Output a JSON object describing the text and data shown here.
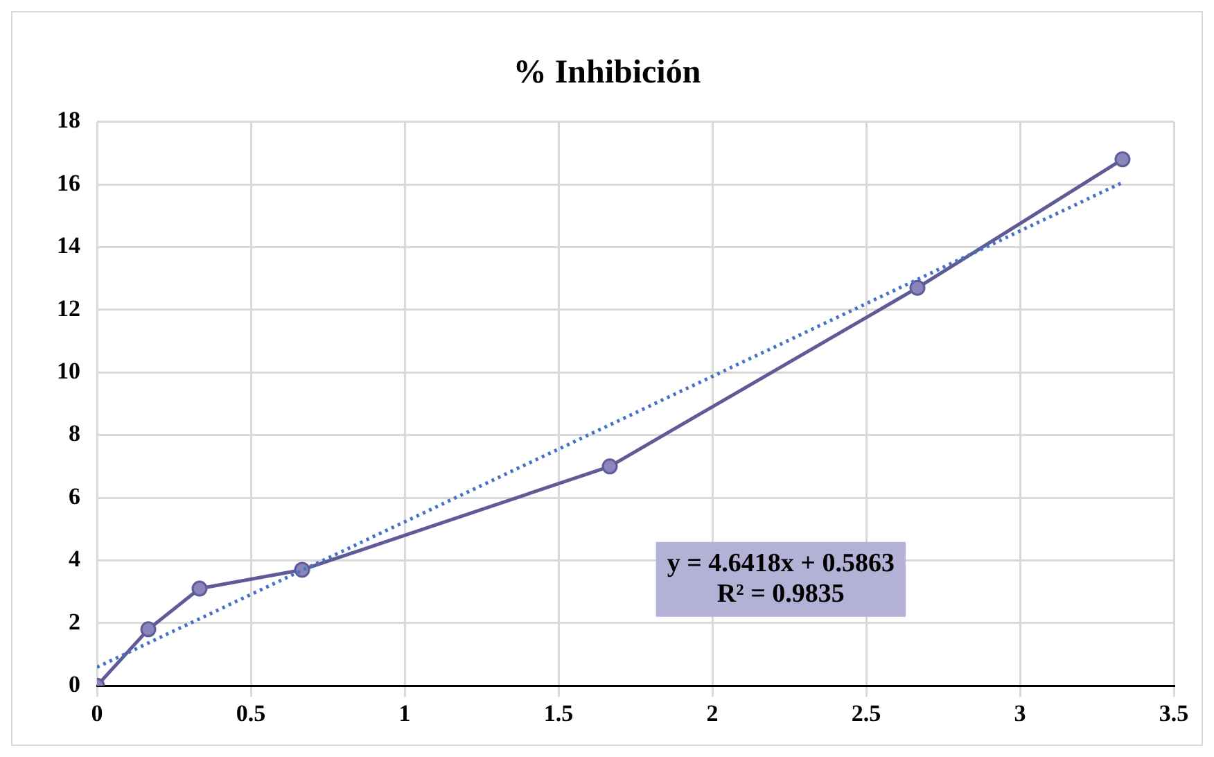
{
  "chart_data": {
    "type": "line",
    "title": "% Inhibición",
    "x": [
      0,
      0.1667,
      0.3333,
      0.6667,
      1.6667,
      2.6667,
      3.3333
    ],
    "series": [
      {
        "type": "line",
        "color": "#5f5b96",
        "values": [
          0,
          1.8,
          3.1,
          3.7,
          7.0,
          12.7,
          16.8
        ],
        "marker": "circle",
        "line_style": "solid"
      },
      {
        "type": "line",
        "color": "#4472c4",
        "x": [
          0,
          3.3333
        ],
        "values": [
          0.59,
          16.06
        ],
        "marker": "none",
        "line_style": "dotted"
      }
    ],
    "xlim": [
      0,
      3.5
    ],
    "xticks": [
      0,
      0.5,
      1,
      1.5,
      2,
      2.5,
      3,
      3.5
    ],
    "ylim": [
      0,
      18
    ],
    "yticks": [
      0,
      2,
      4,
      6,
      8,
      10,
      12,
      14,
      16,
      18
    ],
    "grid": true,
    "legend": false,
    "annotations": [
      "y = 4.6418x + 0.5863",
      "R² = 0.9835"
    ]
  }
}
